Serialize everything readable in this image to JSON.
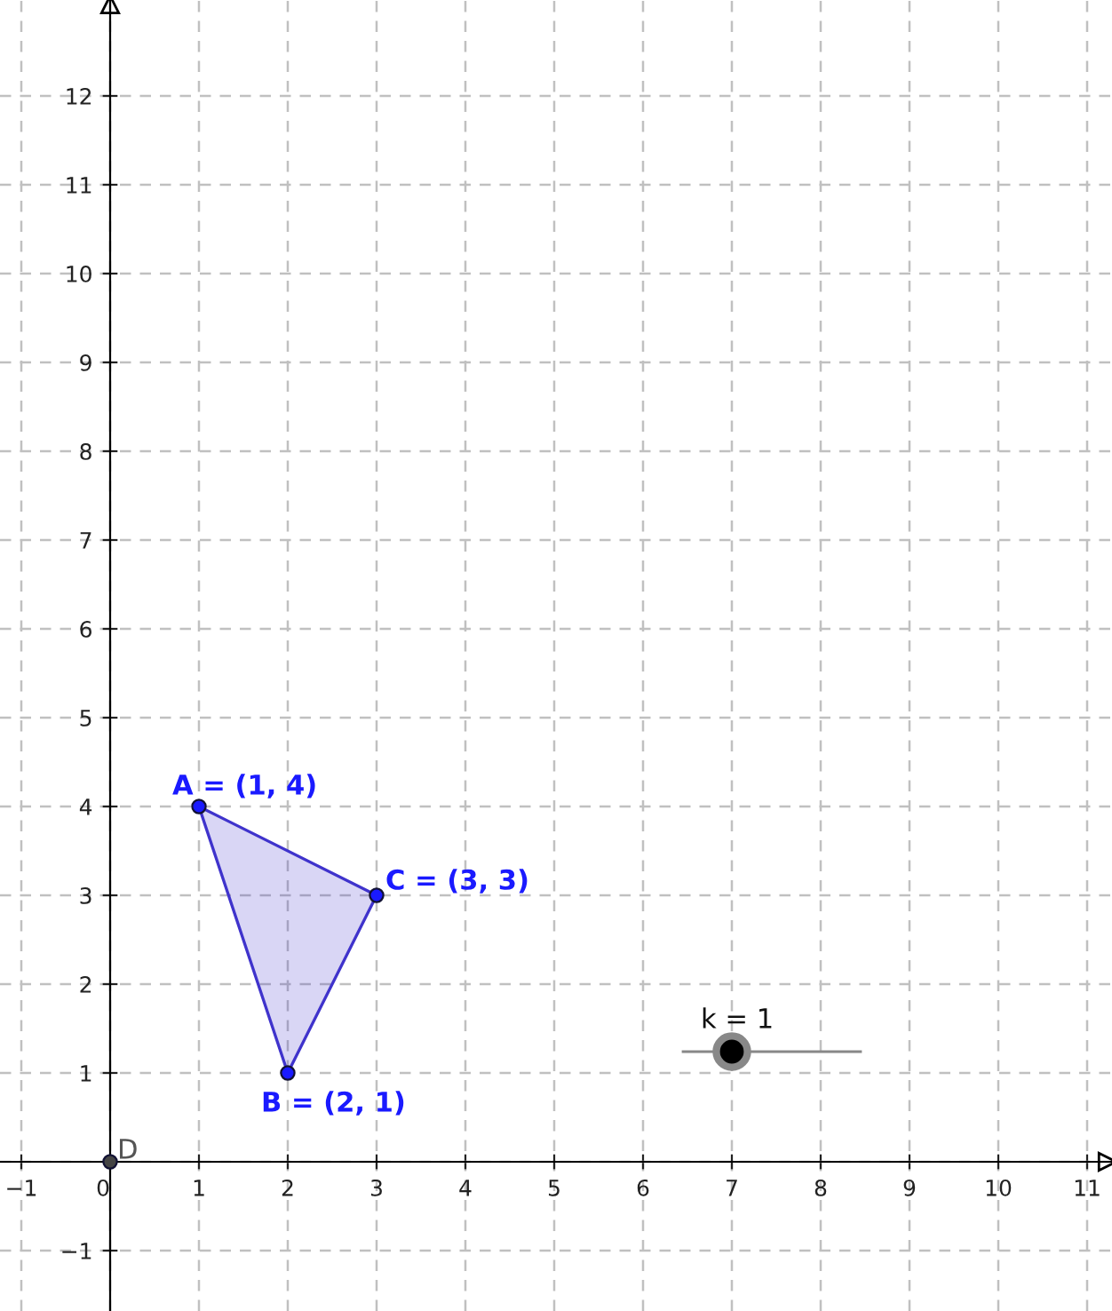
{
  "chart_data": {
    "type": "scatter",
    "xlim": [
      -1.24,
      11.28
    ],
    "ylim": [
      -1.68,
      13.08
    ],
    "xticks": [
      {
        "value": -1,
        "label": "−1"
      },
      0,
      1,
      2,
      3,
      4,
      5,
      6,
      7,
      8,
      9,
      10,
      11
    ],
    "yticks": [
      {
        "value": -1,
        "label": "−1"
      },
      {
        "value": 0,
        "label": null
      },
      1,
      2,
      3,
      4,
      5,
      6,
      7,
      8,
      9,
      10,
      11,
      12
    ],
    "grid": true,
    "marker": "circle",
    "series": [
      {
        "type": "area",
        "marker": "none",
        "color": "#3f33cc",
        "x": [
          1,
          2,
          3,
          1
        ],
        "values": [
          4,
          1,
          3,
          4
        ]
      },
      {
        "color": "#1a1aff",
        "x": [
          1,
          2,
          3
        ],
        "values": [
          4,
          1,
          3
        ]
      },
      {
        "color": "#444444",
        "x": [
          0
        ],
        "values": [
          0
        ]
      }
    ],
    "annotations": [
      {
        "text": "A = (1, 4)",
        "x": 1,
        "y": 4
      },
      {
        "text": "B = (2, 1)",
        "x": 2,
        "y": 1
      },
      {
        "text": "C = (3, 3)",
        "x": 3,
        "y": 3
      },
      {
        "text": "D",
        "x": 0,
        "y": 0
      },
      {
        "text": "k = 1",
        "x": 7,
        "y": 1.24
      }
    ]
  }
}
